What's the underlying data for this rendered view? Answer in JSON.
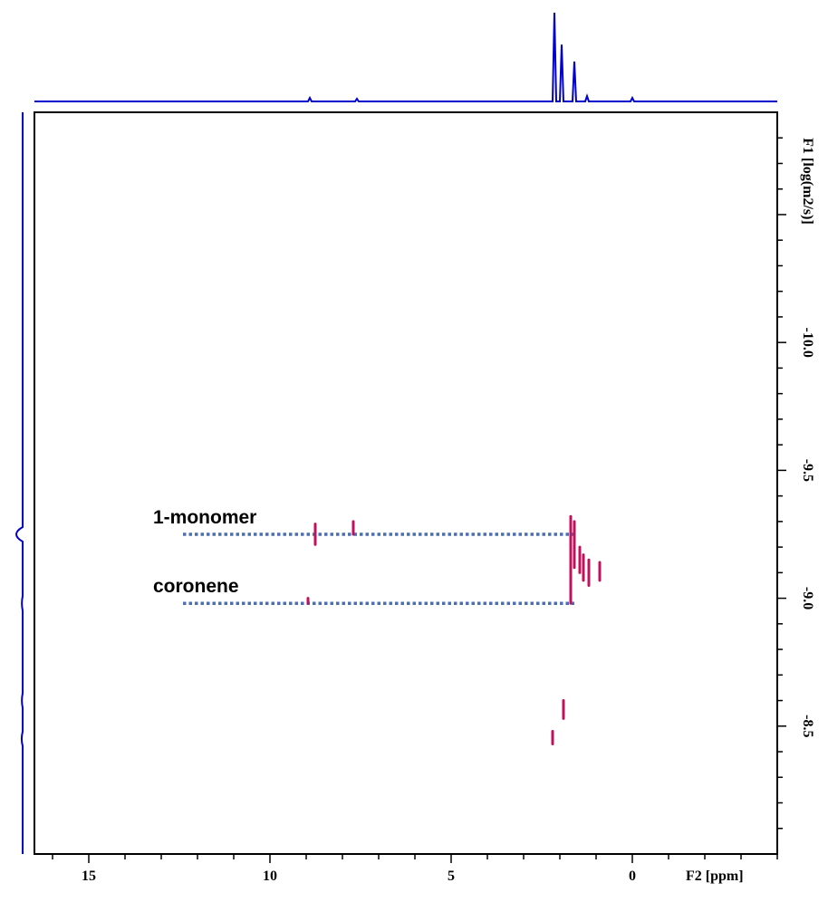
{
  "chart_data": {
    "type": "scatter",
    "subtype": "2D DOSY NMR contour plot with 1D projections",
    "x_axis": {
      "label": "F2 [ppm]",
      "range": [
        16.5,
        -4
      ],
      "reversed": true,
      "ticks": [
        15,
        10,
        5,
        0
      ],
      "tick_labels": [
        "15",
        "10",
        "5",
        "0"
      ]
    },
    "y_axis": {
      "label": "F1 [log(m2/s)]",
      "range": [
        -10.9,
        -8.0
      ],
      "ticks": [
        -10.0,
        -9.5,
        -9.0,
        -8.5
      ],
      "tick_labels": [
        "-10.0",
        "-9.5",
        "-9.0",
        "-8.5"
      ],
      "position": "right"
    },
    "annotations": [
      {
        "label": "1-monomer",
        "f1": -9.25,
        "f2_from": 12.4,
        "f2_to": 1.6
      },
      {
        "label": "coronene",
        "f1": -8.98,
        "f2_from": 12.4,
        "f2_to": 1.6
      }
    ],
    "peaks": [
      {
        "f2": 8.75,
        "f1_from": -9.29,
        "f1_to": -9.21
      },
      {
        "f2": 7.7,
        "f1_from": -9.3,
        "f1_to": -9.25
      },
      {
        "f2": 8.95,
        "f1_from": -9.0,
        "f1_to": -8.98
      },
      {
        "f2": 1.7,
        "f1_from": -9.32,
        "f1_to": -8.98
      },
      {
        "f2": 1.6,
        "f1_from": -9.3,
        "f1_to": -9.12
      },
      {
        "f2": 1.45,
        "f1_from": -9.2,
        "f1_to": -9.1
      },
      {
        "f2": 1.35,
        "f1_from": -9.17,
        "f1_to": -9.07
      },
      {
        "f2": 1.2,
        "f1_from": -9.15,
        "f1_to": -9.05
      },
      {
        "f2": 0.9,
        "f1_from": -9.14,
        "f1_to": -9.07
      },
      {
        "f2": 1.9,
        "f1_from": -8.6,
        "f1_to": -8.53
      },
      {
        "f2": 2.2,
        "f1_from": -8.48,
        "f1_to": -8.43
      }
    ],
    "f2_projection": [
      {
        "ppm": 2.15,
        "intensity": 1.0
      },
      {
        "ppm": 1.95,
        "intensity": 0.64
      },
      {
        "ppm": 1.6,
        "intensity": 0.45
      },
      {
        "ppm": 1.25,
        "intensity": 0.06
      },
      {
        "ppm": 8.9,
        "intensity": 0.04
      },
      {
        "ppm": 7.6,
        "intensity": 0.03
      },
      {
        "ppm": 0.0,
        "intensity": 0.04
      }
    ],
    "f1_projection": [
      {
        "f1": -9.25,
        "intensity": 1.0
      },
      {
        "f1": -8.98,
        "intensity": 0.12
      },
      {
        "f1": -8.45,
        "intensity": 0.15
      },
      {
        "f1": -8.6,
        "intensity": 0.12
      }
    ],
    "grid": false,
    "colors": {
      "frame": "#000000",
      "projection": "#0000cc",
      "peaks": "#c0115d",
      "annotation_line": "#4b6fb0"
    }
  }
}
